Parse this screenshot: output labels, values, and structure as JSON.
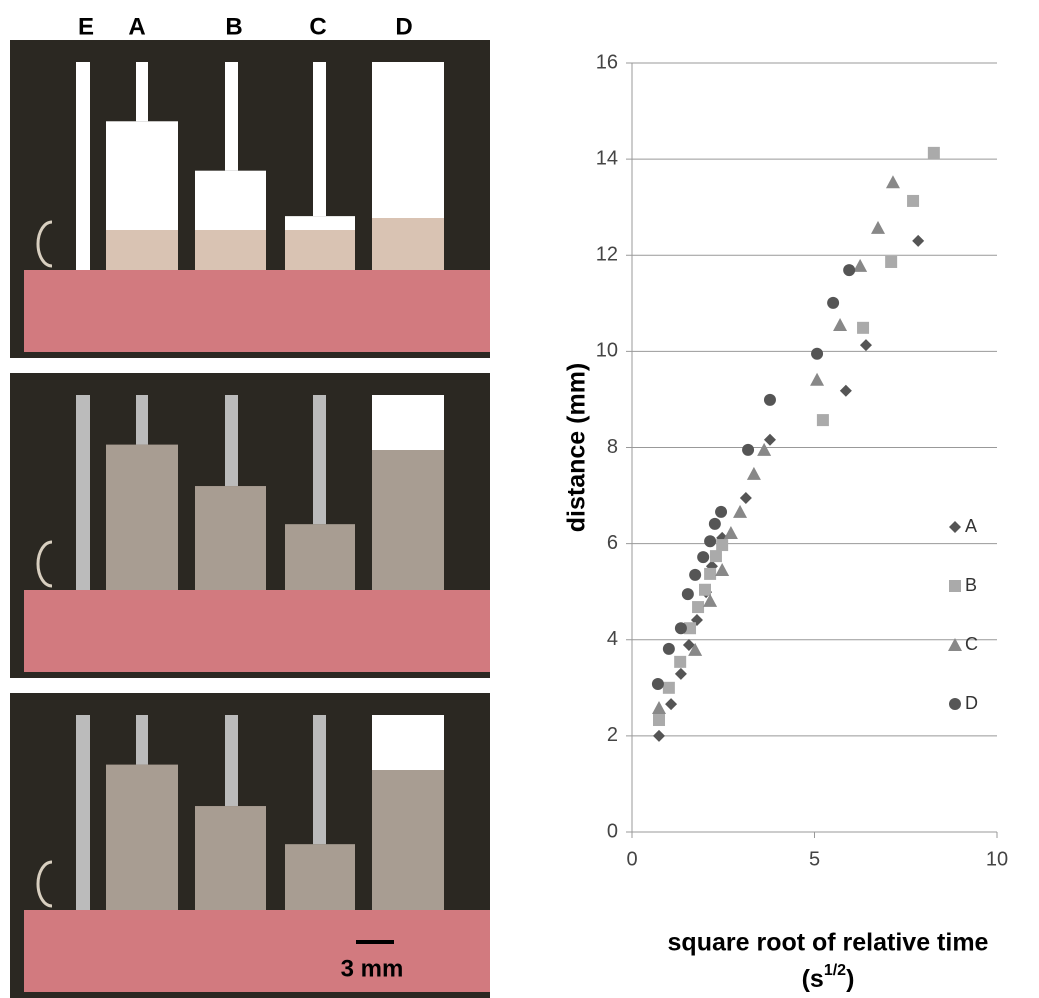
{
  "photo_labels": [
    "E",
    "A",
    "B",
    "C",
    "D"
  ],
  "scale_bar": "3 mm",
  "chart_data": {
    "type": "scatter",
    "x_label": "square root of relative time",
    "x_label_unit": {
      "pre": "(s",
      "sup": "1/2",
      "post": ")"
    },
    "y_label": "distance (mm)",
    "xlim": [
      0,
      10
    ],
    "xticks": [
      0,
      5,
      10
    ],
    "ylim": [
      0,
      16
    ],
    "yticks": [
      0,
      2,
      4,
      6,
      8,
      10,
      12,
      14,
      16
    ],
    "grid": true,
    "legend": "right",
    "series": [
      {
        "name": "A",
        "color": "#555555",
        "marker": "diamond",
        "x": [
          0.74,
          1.07,
          1.34,
          1.56,
          1.78,
          2.03,
          2.19,
          2.47,
          3.12,
          3.78,
          5.86,
          6.41,
          7.84
        ],
        "values": [
          2.0,
          2.66,
          3.29,
          3.89,
          4.41,
          4.99,
          5.53,
          6.12,
          6.95,
          8.16,
          9.18,
          10.13,
          12.3
        ]
      },
      {
        "name": "B",
        "color": "#aaaaaa",
        "marker": "square",
        "x": [
          0.74,
          1.01,
          1.32,
          1.59,
          1.81,
          2.0,
          2.14,
          2.3,
          2.47,
          5.23,
          6.33,
          7.1,
          7.7,
          8.27
        ],
        "values": [
          2.33,
          3.0,
          3.54,
          4.24,
          4.68,
          5.04,
          5.37,
          5.74,
          5.97,
          8.57,
          10.49,
          11.86,
          13.13,
          14.13
        ]
      },
      {
        "name": "C",
        "color": "#888888",
        "marker": "triangle",
        "x": [
          0.74,
          1.73,
          2.14,
          2.47,
          2.71,
          2.96,
          3.34,
          3.62,
          5.07,
          5.7,
          6.25,
          6.74,
          7.15
        ],
        "values": [
          2.58,
          3.79,
          4.81,
          5.45,
          6.22,
          6.66,
          7.45,
          7.95,
          9.41,
          10.55,
          11.78,
          12.57,
          13.52
        ]
      },
      {
        "name": "D",
        "color": "#555555",
        "marker": "circle",
        "x": [
          0.71,
          1.01,
          1.34,
          1.53,
          1.73,
          1.95,
          2.14,
          2.27,
          2.44,
          3.18,
          3.78,
          5.07,
          5.51,
          5.95
        ],
        "values": [
          3.08,
          3.81,
          4.24,
          4.95,
          5.35,
          5.72,
          6.05,
          6.41,
          6.66,
          7.95,
          8.99,
          9.95,
          11.01,
          11.69
        ]
      }
    ]
  }
}
